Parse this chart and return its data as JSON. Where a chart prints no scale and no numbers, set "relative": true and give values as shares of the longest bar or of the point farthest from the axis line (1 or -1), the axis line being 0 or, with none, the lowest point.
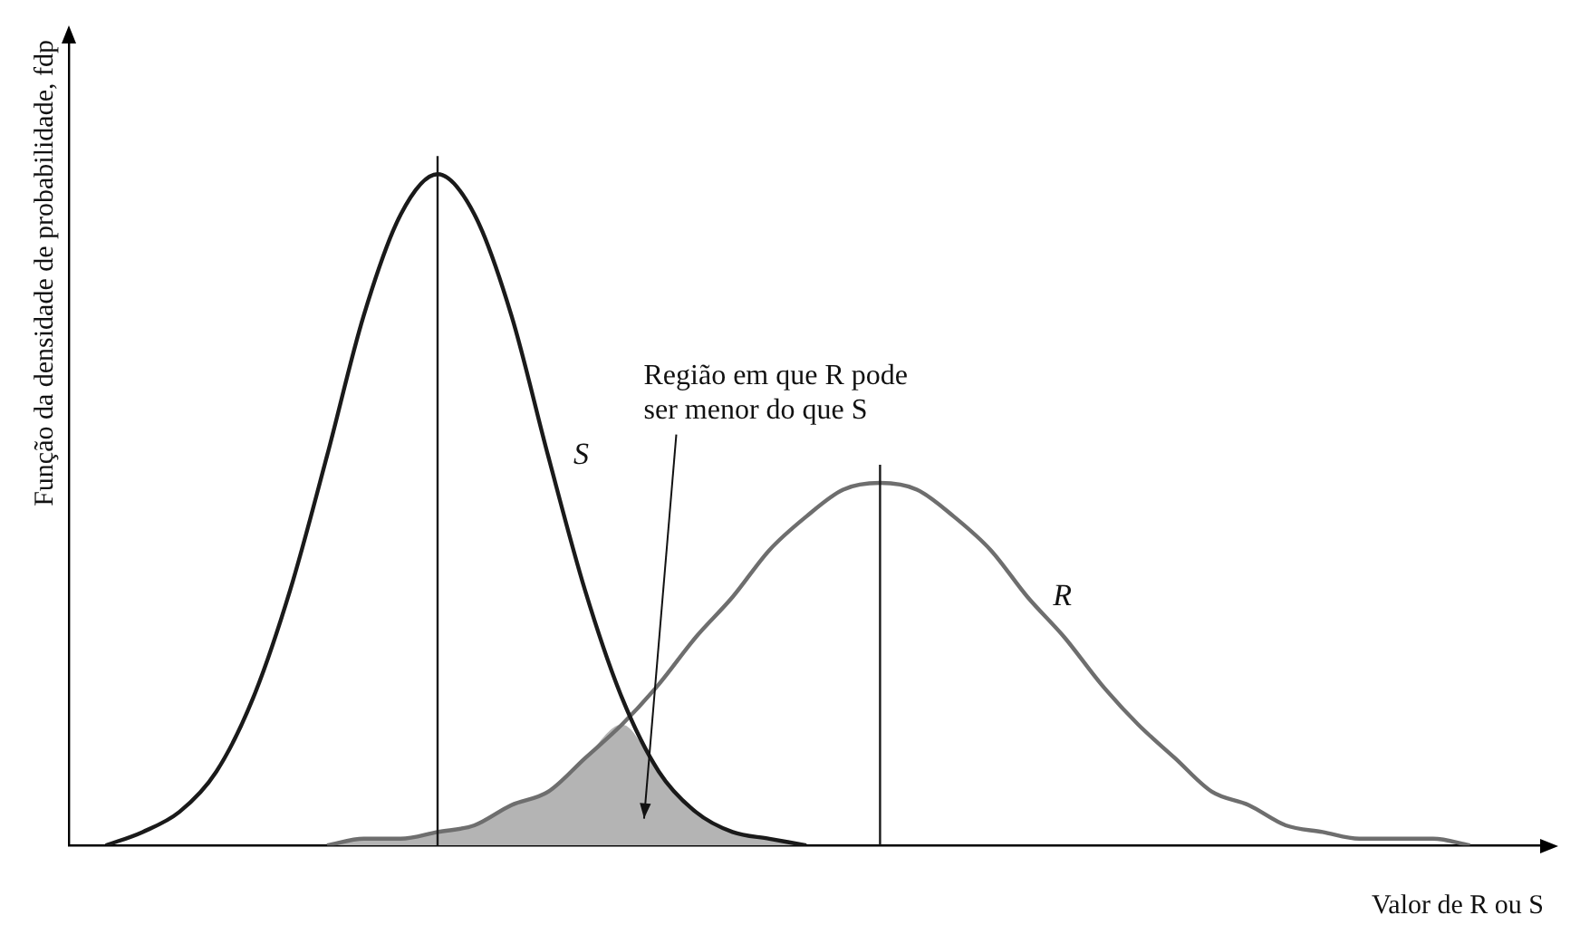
{
  "chart_data": {
    "type": "line",
    "relative": true,
    "xlabel": "Valor de R ou S",
    "ylabel": "Função da densidade de probabilidade, fdp",
    "categories": [
      null,
      null,
      null,
      null,
      null,
      null,
      null,
      null,
      null,
      null,
      null,
      null,
      null,
      null,
      null,
      null,
      null,
      null,
      null,
      null,
      null,
      null,
      null,
      null,
      null,
      null,
      null,
      null,
      null,
      null,
      null,
      null,
      null,
      null,
      null,
      null,
      null,
      null,
      null,
      null,
      null
    ],
    "series": [
      {
        "name": "S",
        "color": "#1a1a1a",
        "values": [
          null,
          0,
          0.02,
          0.05,
          0.11,
          0.22,
          0.38,
          0.58,
          0.79,
          0.94,
          1,
          0.94,
          0.79,
          0.58,
          0.38,
          0.22,
          0.11,
          0.05,
          0.02,
          0.01,
          0,
          null,
          null,
          null,
          null,
          null,
          null,
          null,
          null,
          null,
          null,
          null,
          null,
          null,
          null,
          null,
          null,
          null,
          null,
          null,
          null
        ]
      },
      {
        "name": "R",
        "color": "#6e6e6e",
        "values": [
          null,
          null,
          null,
          null,
          null,
          null,
          null,
          0,
          0.01,
          0.01,
          0.02,
          0.03,
          0.06,
          0.08,
          0.13,
          0.18,
          0.24,
          0.31,
          0.37,
          0.44,
          0.49,
          0.53,
          0.54,
          0.53,
          0.49,
          0.44,
          0.37,
          0.31,
          0.24,
          0.18,
          0.13,
          0.08,
          0.06,
          0.03,
          0.02,
          0.01,
          0.01,
          0.01,
          0,
          null,
          null
        ]
      },
      {
        "type": "area",
        "color": "#b4b4b4",
        "values": [
          null,
          null,
          null,
          null,
          null,
          null,
          null,
          0,
          0.01,
          0.01,
          0.02,
          0.03,
          0.06,
          0.08,
          0.13,
          0.18,
          0.11,
          0.05,
          0.02,
          0.01,
          0,
          null,
          null,
          null,
          null,
          null,
          null,
          null,
          null,
          null,
          null,
          null,
          null,
          null,
          null,
          null,
          null,
          null,
          null,
          null,
          null
        ]
      }
    ],
    "annotations": [
      "Região em que R pode ser menor do que S"
    ],
    "legend": false,
    "grid": false,
    "marker": "none",
    "line_style": "solid"
  }
}
